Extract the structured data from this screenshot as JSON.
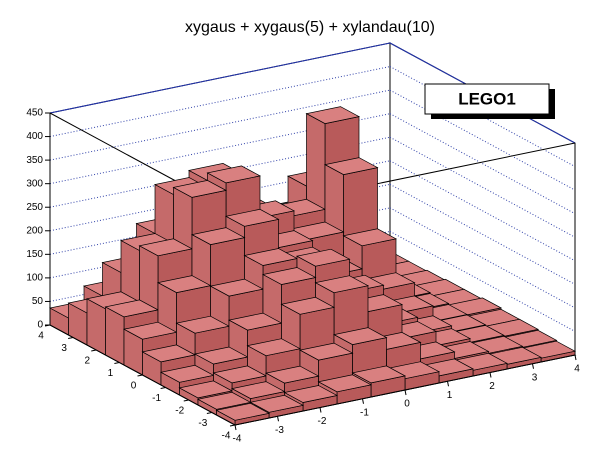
{
  "chart_data": {
    "type": "lego",
    "title": "xygaus + xygaus(5) + xylandau(10)",
    "legend": "LEGO1",
    "xlim": [
      -4,
      4
    ],
    "ylim": [
      -4,
      4
    ],
    "zlim": [
      0,
      450
    ],
    "xticks": [
      -4,
      -3,
      -2,
      -1,
      0,
      1,
      2,
      3,
      4
    ],
    "yticks": [
      -4,
      -3,
      -2,
      -1,
      0,
      1,
      2,
      3,
      4
    ],
    "zticks": [
      0,
      50,
      100,
      150,
      200,
      250,
      300,
      350,
      400,
      450
    ],
    "color": "#d98080",
    "grid": true,
    "values": [
      [
        10,
        12,
        18,
        26,
        30,
        24,
        15,
        12,
        10,
        8
      ],
      [
        12,
        20,
        38,
        72,
        90,
        65,
        30,
        16,
        12,
        10
      ],
      [
        15,
        32,
        75,
        148,
        179,
        124,
        52,
        22,
        14,
        12
      ],
      [
        27,
        51,
        108,
        190,
        214,
        144,
        61,
        28,
        15,
        12
      ],
      [
        49,
        95,
        159,
        209,
        197,
        122,
        52,
        49,
        16,
        15
      ],
      [
        76,
        160,
        247,
        271,
        211,
        114,
        70,
        77,
        18,
        12
      ],
      [
        102,
        217,
        326,
        342,
        253,
        137,
        100,
        149,
        20,
        12
      ],
      [
        98,
        207,
        311,
        326,
        237,
        122,
        157,
        279,
        12,
        10
      ],
      [
        68,
        139,
        207,
        217,
        158,
        83,
        184,
        366,
        10,
        8
      ],
      [
        36,
        68,
        98,
        102,
        76,
        43,
        121,
        212,
        10,
        8
      ]
    ]
  }
}
